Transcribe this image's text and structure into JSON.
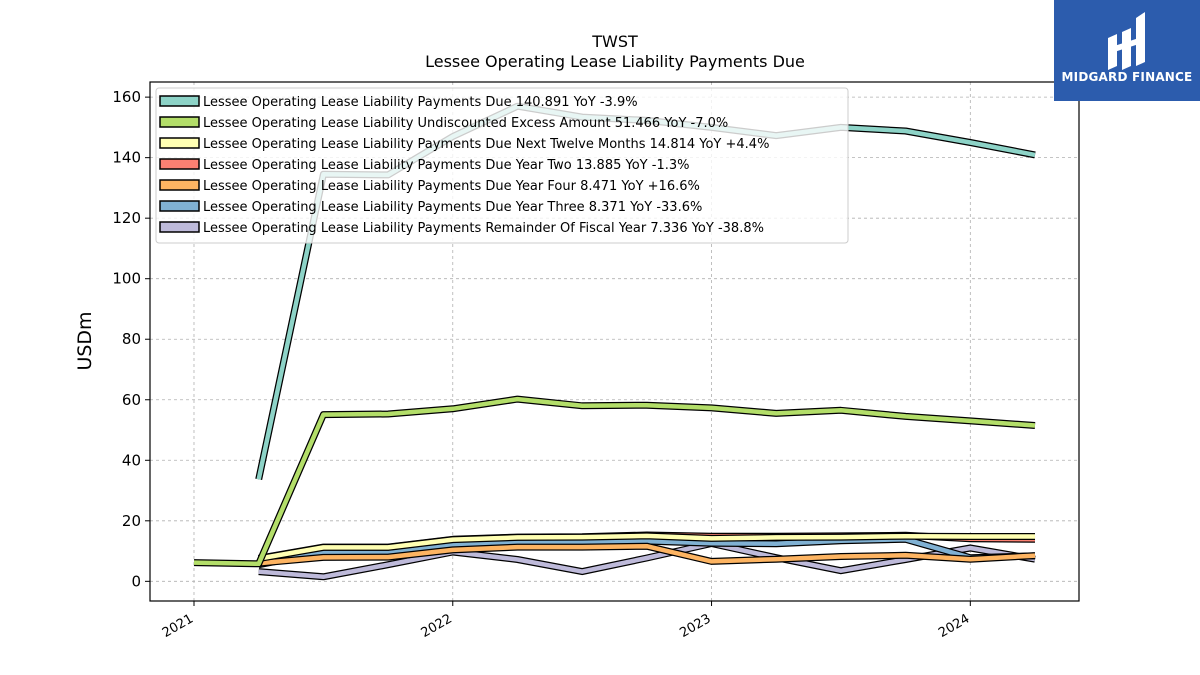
{
  "chart_data": {
    "type": "line",
    "title": "TWST",
    "subtitle": "Lessee Operating Lease Liability Payments Due",
    "ylabel": "USDm",
    "xlabel": "",
    "ylim": [
      -6.5,
      165
    ],
    "xlim": [
      2020.83,
      2024.42
    ],
    "yticks": [
      0,
      20,
      40,
      60,
      80,
      100,
      120,
      140,
      160
    ],
    "xticks": [
      2021,
      2022,
      2023,
      2024
    ],
    "xtick_labels": [
      "2021",
      "2022",
      "2023",
      "2024"
    ],
    "grid": true,
    "legend_position": "top-left",
    "series": [
      {
        "name": "Lessee Operating Lease Liability Payments Due",
        "legend": "Lessee Operating Lease Liability Payments Due  140.891 YoY -3.9%",
        "color": "#8dd3c7",
        "x": [
          2021.25,
          2021.5,
          2021.75,
          2022.0,
          2022.25,
          2022.5,
          2022.75,
          2023.0,
          2023.25,
          2023.5,
          2023.75,
          2024.0,
          2024.25
        ],
        "values": [
          33.7,
          134.5,
          134.3,
          147.0,
          157.0,
          153.4,
          152.3,
          150.0,
          147.3,
          150.0,
          148.8,
          145.0,
          140.9
        ]
      },
      {
        "name": "Lessee Operating Lease Liability Undiscounted Excess Amount",
        "legend": "Lessee Operating Lease Liability Undiscounted Excess Amount  51.466 YoY -7.0%",
        "color": "#b3de69",
        "x": [
          2021.0,
          2021.25,
          2021.5,
          2021.75,
          2022.0,
          2022.25,
          2022.5,
          2022.75,
          2023.0,
          2023.25,
          2023.5,
          2023.75,
          2024.0,
          2024.25
        ],
        "values": [
          6.2,
          5.8,
          55.1,
          55.3,
          57.0,
          60.2,
          58.0,
          58.2,
          57.3,
          55.5,
          56.5,
          54.5,
          53.0,
          51.5
        ]
      },
      {
        "name": "Lessee Operating Lease Liability Payments Due Next Twelve Months",
        "legend": "Lessee Operating Lease Liability Payments Due Next Twelve Months  14.814 YoY +4.4%",
        "color": "#ffffb3",
        "x": [
          2021.25,
          2021.5,
          2021.75,
          2022.0,
          2022.25,
          2022.5,
          2022.75,
          2023.0,
          2023.25,
          2023.5,
          2023.75,
          2024.0,
          2024.25
        ],
        "values": [
          7.5,
          11.2,
          11.2,
          13.8,
          14.5,
          14.6,
          15.0,
          14.2,
          14.5,
          14.6,
          14.9,
          14.8,
          14.8
        ]
      },
      {
        "name": "Lessee Operating Lease Liability Payments Due Year Two",
        "legend": "Lessee Operating Lease Liability Payments Due Year Two  13.885 YoY -1.3%",
        "color": "#fb8072",
        "x": [
          2021.25,
          2021.5,
          2021.75,
          2022.0,
          2022.25,
          2022.5,
          2022.75,
          2023.0,
          2023.25,
          2023.5,
          2023.75,
          2024.0,
          2024.25
        ],
        "values": [
          7.6,
          11.3,
          11.3,
          13.9,
          14.6,
          14.7,
          15.3,
          14.9,
          14.9,
          15.0,
          15.2,
          14.1,
          13.9
        ]
      },
      {
        "name": "Lessee Operating Lease Liability Payments Due Year Four",
        "legend": "Lessee Operating Lease Liability Payments Due Year Four  8.471 YoY +16.6%",
        "color": "#fdb462",
        "x": [
          2021.25,
          2021.5,
          2021.75,
          2022.0,
          2022.25,
          2022.5,
          2022.75,
          2023.0,
          2023.25,
          2023.5,
          2023.75,
          2024.0,
          2024.25
        ],
        "values": [
          6.0,
          7.9,
          8.0,
          10.4,
          11.3,
          11.3,
          11.6,
          6.6,
          7.3,
          8.2,
          8.6,
          7.3,
          8.5
        ]
      },
      {
        "name": "Lessee Operating Lease Liability Payments Due Year Three",
        "legend": "Lessee Operating Lease Liability Payments Due Year Three  8.371 YoY -33.6%",
        "color": "#80b1d3",
        "x": [
          2021.25,
          2021.5,
          2021.75,
          2022.0,
          2022.25,
          2022.5,
          2022.75,
          2023.0,
          2023.25,
          2023.5,
          2023.75,
          2024.0,
          2024.25
        ],
        "values": [
          5.5,
          9.6,
          9.7,
          12.0,
          12.9,
          13.0,
          13.3,
          12.6,
          12.4,
          13.4,
          13.9,
          7.8,
          8.4
        ]
      },
      {
        "name": "Lessee Operating Lease Liability Payments Remainder Of Fiscal Year",
        "legend": "Lessee Operating Lease Liability Payments Remainder Of Fiscal Year  7.336 YoY -38.8%",
        "color": "#bebada",
        "x": [
          2021.25,
          2021.5,
          2021.75,
          2022.0,
          2022.25,
          2022.5,
          2022.75,
          2023.0,
          2023.25,
          2023.5,
          2023.75,
          2024.0,
          2024.25
        ],
        "values": [
          3.2,
          1.5,
          5.5,
          9.7,
          7.2,
          3.2,
          7.7,
          12.5,
          7.8,
          3.5,
          7.2,
          11.0,
          7.3
        ]
      }
    ]
  },
  "logo": {
    "text": "MIDGARD FINANCE",
    "background": "#2c5cad"
  }
}
